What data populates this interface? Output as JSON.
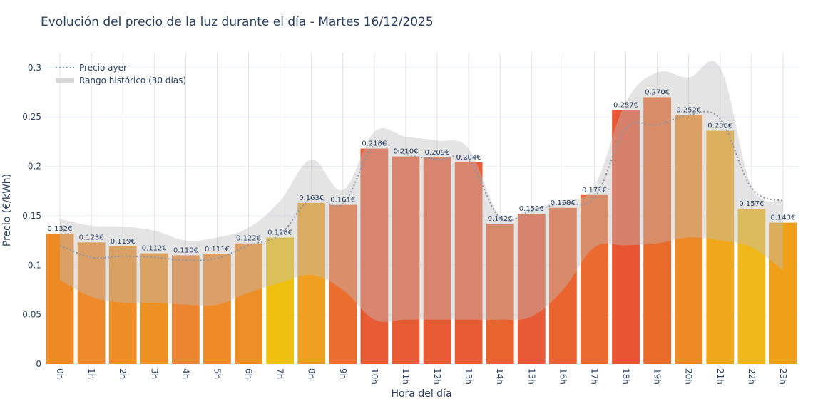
{
  "chart_data": {
    "type": "bar",
    "title": "Evolución del precio de la luz durante el día - Martes 16/12/2025",
    "xlabel": "Hora del día",
    "ylabel": "Precio (€/kWh)",
    "ylim": [
      0,
      0.315
    ],
    "yticks": [
      0,
      0.05,
      0.1,
      0.15,
      0.2,
      0.25,
      0.3
    ],
    "ytick_labels": [
      "0",
      "0.05",
      "0.1",
      "0.15",
      "0.2",
      "0.25",
      "0.3"
    ],
    "grid": true,
    "legend_placement": "top-left",
    "categories": [
      "0h",
      "1h",
      "2h",
      "3h",
      "4h",
      "5h",
      "6h",
      "7h",
      "8h",
      "9h",
      "10h",
      "11h",
      "12h",
      "13h",
      "14h",
      "15h",
      "16h",
      "17h",
      "18h",
      "19h",
      "20h",
      "21h",
      "22h",
      "23h"
    ],
    "values": [
      0.132,
      0.123,
      0.119,
      0.112,
      0.11,
      0.111,
      0.122,
      0.128,
      0.163,
      0.161,
      0.218,
      0.21,
      0.209,
      0.204,
      0.142,
      0.152,
      0.158,
      0.171,
      0.257,
      0.27,
      0.252,
      0.236,
      0.157,
      0.143
    ],
    "data_labels": [
      "0.132€",
      "0.123€",
      "0.119€",
      "0.112€",
      "0.110€",
      "0.111€",
      "0.122€",
      "0.128€",
      "0.163€",
      "0.161€",
      "0.218€",
      "0.210€",
      "0.209€",
      "0.204€",
      "0.142€",
      "0.152€",
      "0.158€",
      "0.171€",
      "0.257€",
      "0.270€",
      "0.252€",
      "0.236€",
      "0.157€",
      "0.143€"
    ],
    "bar_colors": [
      "#ee8a25",
      "#ee8a2a",
      "#ee8c25",
      "#ee9022",
      "#ec8430",
      "#ee8a28",
      "#ee8e26",
      "#f0c010",
      "#efa020",
      "#ec6e2e",
      "#e85c35",
      "#e85c35",
      "#e85c35",
      "#e85c35",
      "#ea6430",
      "#e85a35",
      "#ea6430",
      "#ea6a30",
      "#e85532",
      "#ea6a2a",
      "#ee8a25",
      "#f0a81a",
      "#f0b818",
      "#f0a018"
    ],
    "series": [
      {
        "name": "Precio ayer",
        "type": "line",
        "style": "dotted",
        "color": "#8a96a6",
        "values": [
          0.12,
          0.108,
          0.109,
          0.108,
          0.105,
          0.107,
          0.12,
          0.131,
          0.168,
          0.162,
          0.221,
          0.212,
          0.207,
          0.206,
          0.148,
          0.155,
          0.163,
          0.168,
          0.238,
          0.242,
          0.252,
          0.248,
          0.178,
          0.165
        ]
      },
      {
        "name": "Rango histórico (30 días)",
        "type": "area-range",
        "color": "#cccccc",
        "upper": [
          0.147,
          0.14,
          0.139,
          0.135,
          0.125,
          0.128,
          0.138,
          0.165,
          0.207,
          0.176,
          0.235,
          0.23,
          0.226,
          0.218,
          0.15,
          0.158,
          0.165,
          0.18,
          0.265,
          0.295,
          0.29,
          0.3,
          0.18,
          0.165
        ],
        "lower": [
          0.085,
          0.068,
          0.062,
          0.062,
          0.06,
          0.06,
          0.072,
          0.082,
          0.09,
          0.075,
          0.045,
          0.045,
          0.045,
          0.045,
          0.045,
          0.048,
          0.075,
          0.118,
          0.12,
          0.122,
          0.128,
          0.125,
          0.118,
          0.095
        ]
      }
    ]
  }
}
